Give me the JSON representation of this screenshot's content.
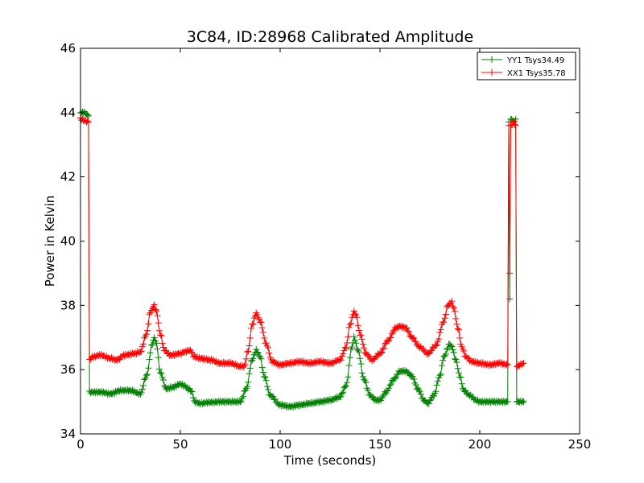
{
  "chart_data": {
    "type": "line",
    "title": "3C84, ID:28968 Calibrated Amplitude",
    "xlabel": "Time (seconds)",
    "ylabel": "Power in Kelvin",
    "xlim": [
      0,
      250
    ],
    "ylim": [
      34,
      46
    ],
    "xticks": [
      0,
      50,
      100,
      150,
      200,
      250
    ],
    "yticks": [
      34,
      36,
      38,
      40,
      42,
      44,
      46
    ],
    "grid": false,
    "legend_position": "top-right",
    "series": [
      {
        "name": "YY1 Tsys34.49",
        "color": "#008000",
        "marker": "plus",
        "x": [
          0,
          2,
          4,
          4.5,
          6,
          10,
          15,
          20,
          25,
          30,
          33,
          36,
          37,
          38,
          40,
          43,
          46,
          50,
          52,
          54,
          56,
          57,
          60,
          65,
          70,
          75,
          80,
          83,
          86,
          88,
          90,
          92,
          95,
          100,
          105,
          110,
          115,
          120,
          125,
          130,
          133,
          136,
          137,
          139,
          142,
          145,
          148,
          150,
          153,
          157,
          160,
          163,
          166,
          169,
          172,
          174,
          177,
          180,
          182,
          185,
          186,
          188,
          190,
          192,
          195,
          198,
          200,
          205,
          210,
          214,
          214.5,
          215,
          216,
          217,
          218,
          219,
          220,
          222
        ],
        "y": [
          44.0,
          44.0,
          43.9,
          35.3,
          35.3,
          35.3,
          35.25,
          35.35,
          35.35,
          35.25,
          35.8,
          36.8,
          37.0,
          36.8,
          35.9,
          35.4,
          35.45,
          35.55,
          35.5,
          35.4,
          35.3,
          35.0,
          34.95,
          34.98,
          35.0,
          35.0,
          35.0,
          35.4,
          36.3,
          36.6,
          36.4,
          35.8,
          35.2,
          34.9,
          34.85,
          34.9,
          34.95,
          35.0,
          35.05,
          35.15,
          35.5,
          36.7,
          37.0,
          36.6,
          35.7,
          35.2,
          35.05,
          35.05,
          35.3,
          35.7,
          35.95,
          35.95,
          35.8,
          35.4,
          35.05,
          34.95,
          35.2,
          35.8,
          36.4,
          36.8,
          36.7,
          36.3,
          35.8,
          35.35,
          35.2,
          35.05,
          35.0,
          35.0,
          35.0,
          35.0,
          43.7,
          38.2,
          43.8,
          43.7,
          43.8,
          35.0,
          35.0,
          35.0
        ]
      },
      {
        "name": "XX1 Tsys35.78",
        "color": "#ff0000",
        "marker": "plus",
        "x": [
          0,
          2,
          4,
          4.5,
          6,
          10,
          15,
          18,
          22,
          27,
          30,
          33,
          35,
          37,
          38,
          40,
          42,
          45,
          50,
          52,
          55,
          57,
          60,
          65,
          70,
          75,
          80,
          82,
          84,
          86,
          88,
          90,
          93,
          96,
          100,
          105,
          110,
          115,
          120,
          125,
          130,
          133,
          135,
          137,
          138,
          140,
          143,
          146,
          150,
          154,
          158,
          160,
          163,
          166,
          170,
          174,
          178,
          182,
          184,
          186,
          187,
          189,
          191,
          193,
          196,
          200,
          205,
          210,
          214,
          214.5,
          215,
          216,
          217,
          218,
          219,
          220,
          222
        ],
        "y": [
          43.8,
          43.75,
          43.7,
          36.3,
          36.4,
          36.45,
          36.35,
          36.3,
          36.45,
          36.5,
          36.55,
          37.1,
          37.8,
          38.0,
          37.8,
          37.1,
          36.6,
          36.45,
          36.5,
          36.55,
          36.6,
          36.4,
          36.35,
          36.3,
          36.2,
          36.2,
          36.1,
          36.1,
          36.6,
          37.4,
          37.75,
          37.5,
          36.8,
          36.25,
          36.15,
          36.2,
          36.25,
          36.2,
          36.25,
          36.2,
          36.3,
          36.7,
          37.4,
          37.8,
          37.7,
          37.1,
          36.5,
          36.3,
          36.5,
          36.9,
          37.3,
          37.35,
          37.3,
          37.0,
          36.7,
          36.5,
          36.75,
          37.5,
          38.0,
          38.1,
          37.9,
          37.3,
          36.7,
          36.4,
          36.25,
          36.2,
          36.15,
          36.2,
          36.15,
          43.6,
          39.0,
          43.6,
          43.7,
          43.6,
          36.1,
          36.15,
          36.2
        ]
      }
    ]
  }
}
